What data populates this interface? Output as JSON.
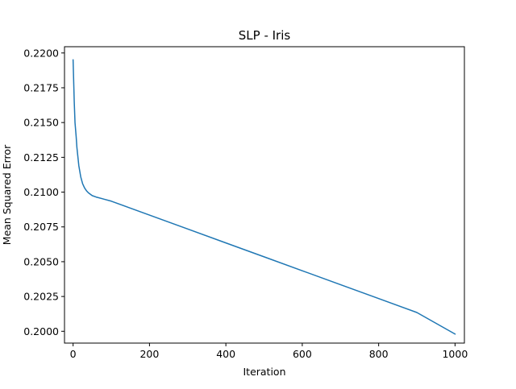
{
  "chart_data": {
    "type": "line",
    "title": "SLP - Iris",
    "xlabel": "Iteration",
    "ylabel": "Mean Squared Error",
    "xlim": [
      -22.5,
      1024.5
    ],
    "ylim": [
      0.19915,
      0.22045
    ],
    "xticks": [
      0,
      200,
      400,
      600,
      800,
      1000
    ],
    "xtick_labels": [
      "0",
      "200",
      "400",
      "600",
      "800",
      "1000"
    ],
    "yticks": [
      0.2,
      0.2025,
      0.205,
      0.2075,
      0.21,
      0.2125,
      0.215,
      0.2175,
      0.22
    ],
    "ytick_labels": [
      "0.2000",
      "0.2025",
      "0.2050",
      "0.2075",
      "0.2100",
      "0.2125",
      "0.2150",
      "0.2175",
      "0.2200"
    ],
    "grid": false,
    "series": [
      {
        "color": "#1f77b4",
        "x": [
          0,
          3,
          5,
          8,
          10,
          15,
          20,
          25,
          30,
          35,
          40,
          50,
          60,
          80,
          100,
          150,
          200,
          250,
          300,
          400,
          500,
          600,
          700,
          800,
          900,
          1000
        ],
        "y": [
          0.2195,
          0.2165,
          0.215,
          0.214,
          0.2132,
          0.2119,
          0.2111,
          0.2106,
          0.2103,
          0.2101,
          0.20995,
          0.20975,
          0.20965,
          0.2095,
          0.20935,
          0.20885,
          0.20835,
          0.20785,
          0.20735,
          0.20635,
          0.20535,
          0.20435,
          0.20335,
          0.20235,
          0.20135,
          0.1998
        ]
      }
    ]
  }
}
